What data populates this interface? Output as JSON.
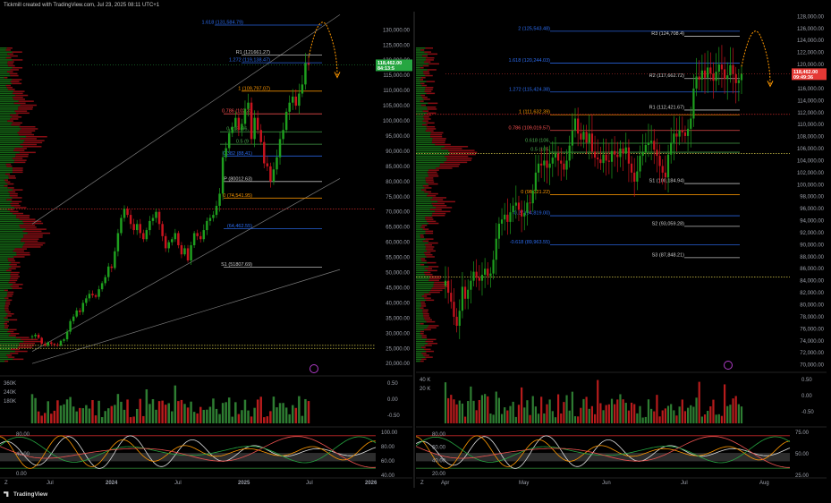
{
  "header": {
    "text": "Tickmill created with TradingView.com, Jul 23, 2025 08:11 UTC+1"
  },
  "footer": {
    "logo": "TradingView",
    "zone_label": "Z"
  },
  "colors": {
    "bull": "#1e9e1e",
    "bear": "#c8141e",
    "fib_blue": "#2c6cf0",
    "fib_orange": "#ff9800",
    "fib_red": "#ff5252",
    "pivot_white": "#d0d0d0",
    "price_pill_green": "#26a641",
    "price_pill_red": "#e53935"
  },
  "chart_data": [
    {
      "type": "candlestick",
      "panel": "left",
      "timeframe": "weekly",
      "x_labels": [
        "Jul",
        "2024",
        "Jul",
        "2025",
        "Jul",
        "2026"
      ],
      "y_ticks": [
        130000,
        125000,
        120000,
        115000,
        110000,
        105000,
        100000,
        95000,
        90000,
        85000,
        80000,
        75000,
        70000,
        65000,
        60000,
        55000,
        50000,
        45000,
        40000,
        35000,
        30000,
        25000,
        20000
      ],
      "y_tick_labels": [
        "130,000.00",
        "125,000.00",
        "120,000.00",
        "115,000.00",
        "110,000.00",
        "105,000.00",
        "100,000.00",
        "95,000.00",
        "90,000.00",
        "85,000.00",
        "80,000.00",
        "75,000.00",
        "70,000.00",
        "65,000.00",
        "60,000.00",
        "55,000.00",
        "50,000.00",
        "45,000.00",
        "40,000.00",
        "35,000.00",
        "30,000.00",
        "25,000.00",
        "20,000.00"
      ],
      "ylim": [
        18000,
        136000
      ],
      "close_series": [
        29000,
        29500,
        28500,
        26500,
        26000,
        27000,
        26500,
        26200,
        26000,
        27500,
        28000,
        30500,
        34000,
        35500,
        37500,
        37000,
        40000,
        41500,
        43000,
        42500,
        42000,
        44500,
        46500,
        48500,
        52000,
        51500,
        57000,
        63000,
        68000,
        71000,
        69000,
        66000,
        64000,
        66000,
        63000,
        61000,
        64000,
        67000,
        68000,
        70000,
        66000,
        62000,
        58000,
        60000,
        61000,
        63000,
        59000,
        56000,
        58000,
        54000,
        59000,
        63000,
        62000,
        61000,
        64000,
        67000,
        68000,
        69000,
        72000,
        76000,
        88000,
        91000,
        96000,
        98000,
        101000,
        97000,
        99000,
        104000,
        106000,
        94000,
        101000,
        97000,
        93000,
        86000,
        85000,
        80000,
        84000,
        88000,
        94000,
        97000,
        103000,
        106000,
        108000,
        105000,
        109000,
        112000,
        119000,
        118462
      ],
      "current_price": "118,462.00",
      "current_countdown": "84:13:5",
      "levels": [
        {
          "label": "1.618 (131,584.79)",
          "value": 131584.79,
          "color": "blue"
        },
        {
          "label": "R1 (121661.27)",
          "value": 121661.27,
          "color": "white"
        },
        {
          "label": "1.272 (119,138.47)",
          "value": 119138.47,
          "color": "blue"
        },
        {
          "label": "1 (109,797.07)",
          "value": 109797.07,
          "color": "orange"
        },
        {
          "label": "0.786 (102,31",
          "value": 102310,
          "color": "red"
        },
        {
          "label": "0.618 (96,",
          "value": 96400,
          "color": "green"
        },
        {
          "label": "0.5 (9",
          "value": 92300,
          "color": "green"
        },
        {
          "label": "0.382 (88,41)",
          "value": 88410,
          "color": "blue"
        },
        {
          "label": "P (80012.63)",
          "value": 80012.63,
          "color": "white"
        },
        {
          "label": "0 (74,541.95)",
          "value": 74541.95,
          "color": "orange"
        },
        {
          "label": "(64,462.55)",
          "value": 64462.55,
          "color": "blue"
        },
        {
          "label": "S1 (51807.69)",
          "value": 51807.69,
          "color": "white"
        }
      ],
      "volume": {
        "y_ticks": [
          "360K",
          "240K",
          "180K"
        ],
        "right_ticks": [
          "0.50",
          "0.00",
          "-0.50"
        ]
      },
      "oscillator": {
        "left_ticks": [
          "80.00",
          "40.00",
          "0.00"
        ],
        "right_ticks": [
          "100.00",
          "80.00",
          "60.00",
          "40.00"
        ]
      }
    },
    {
      "type": "candlestick",
      "panel": "right",
      "timeframe": "daily",
      "x_labels": [
        "Apr",
        "May",
        "Jun",
        "Jul",
        "Aug"
      ],
      "y_ticks": [
        128000,
        126000,
        124000,
        122000,
        120000,
        118000,
        116000,
        114000,
        112000,
        110000,
        108000,
        106000,
        104000,
        102000,
        100000,
        98000,
        96000,
        94000,
        92000,
        90000,
        88000,
        86000,
        84000,
        82000,
        80000,
        78000,
        76000,
        74000,
        72000,
        70000
      ],
      "y_tick_labels": [
        "128,000.00",
        "126,000.00",
        "124,000.00",
        "122,000.00",
        "120,000.00",
        "118,000.00",
        "116,000.00",
        "114,000.00",
        "112,000.00",
        "110,000.00",
        "108,000.00",
        "106,000.00",
        "104,000.00",
        "102,000.00",
        "100,000.00",
        "98,000.00",
        "96,000.00",
        "94,000.00",
        "92,000.00",
        "90,000.00",
        "88,000.00",
        "86,000.00",
        "84,000.00",
        "82,000.00",
        "80,000.00",
        "78,000.00",
        "76,000.00",
        "74,000.00",
        "72,000.00",
        "70,000.00"
      ],
      "ylim": [
        69200,
        128800
      ],
      "close_series": [
        84000,
        82000,
        80500,
        78000,
        76500,
        79000,
        83000,
        81000,
        82500,
        84000,
        85500,
        84500,
        84000,
        85000,
        86000,
        84800,
        85200,
        87500,
        91000,
        93500,
        94200,
        95000,
        93800,
        95400,
        96500,
        97000,
        95800,
        94700,
        95300,
        97000,
        96900,
        99000,
        102000,
        103500,
        103200,
        104000,
        102800,
        103500,
        104500,
        105200,
        104000,
        103500,
        102500,
        104000,
        106500,
        109000,
        111000,
        108500,
        107500,
        108800,
        107000,
        108500,
        105500,
        104500,
        104200,
        103600,
        105000,
        104000,
        103800,
        105600,
        105000,
        104600,
        106000,
        105200,
        106200,
        103500,
        102000,
        100500,
        102200,
        104800,
        105400,
        106600,
        107000,
        107300,
        105800,
        104800,
        103100,
        102000,
        101200,
        105000,
        107000,
        108500,
        108000,
        109000,
        108700,
        108100,
        109300,
        111000,
        116000,
        118000,
        117500,
        119000,
        117800,
        119500,
        118500,
        117300,
        118800,
        120000,
        119200,
        117600,
        118200,
        119900,
        118400,
        116900,
        117400,
        118462
      ],
      "current_price": "118,462.00",
      "current_countdown": "09:49:36",
      "levels": [
        {
          "label": "2 (125,543.48)",
          "value": 125543.48,
          "color": "blue"
        },
        {
          "label": "R3 (124,708.4)",
          "value": 124708.4,
          "color": "white"
        },
        {
          "label": "1.618 (120,244.03)",
          "value": 120244.03,
          "color": "blue"
        },
        {
          "label": "R2 (117,662.72)",
          "value": 117662.72,
          "color": "white"
        },
        {
          "label": "1.272 (115,424.38)",
          "value": 115424.38,
          "color": "blue"
        },
        {
          "label": "R1 (112,421.67)",
          "value": 112421.67,
          "color": "white"
        },
        {
          "label": "1 (111,632.39)",
          "value": 111632.39,
          "color": "orange"
        },
        {
          "label": "0.786 (109,019.57)",
          "value": 109019.57,
          "color": "red"
        },
        {
          "label": "0.618 (106,",
          "value": 106900,
          "color": "green"
        },
        {
          "label": "0.5 (105,",
          "value": 105400,
          "color": "green"
        },
        {
          "label": "S1 (100,184.94)",
          "value": 100184.94,
          "color": "white"
        },
        {
          "label": "0 (98,321.22)",
          "value": 98321.22,
          "color": "orange"
        },
        {
          "label": "-0.27 (94,819.00)",
          "value": 94819.0,
          "color": "blue"
        },
        {
          "label": "S2 (93,059.28)",
          "value": 93059.28,
          "color": "white"
        },
        {
          "label": "-0.618 (89,963.55)",
          "value": 89963.55,
          "color": "blue"
        },
        {
          "label": "S3 (87,848.21)",
          "value": 87848.21,
          "color": "white"
        }
      ],
      "volume": {
        "y_ticks": [
          "40 K",
          "20 K"
        ],
        "right_ticks": [
          "0.50",
          "0.00",
          "-0.50"
        ]
      },
      "oscillator": {
        "left_ticks": [
          "80.00",
          "60.00",
          "40.00",
          "20.00"
        ],
        "right_ticks": [
          "75.00",
          "50.00",
          "25.00"
        ]
      }
    }
  ]
}
